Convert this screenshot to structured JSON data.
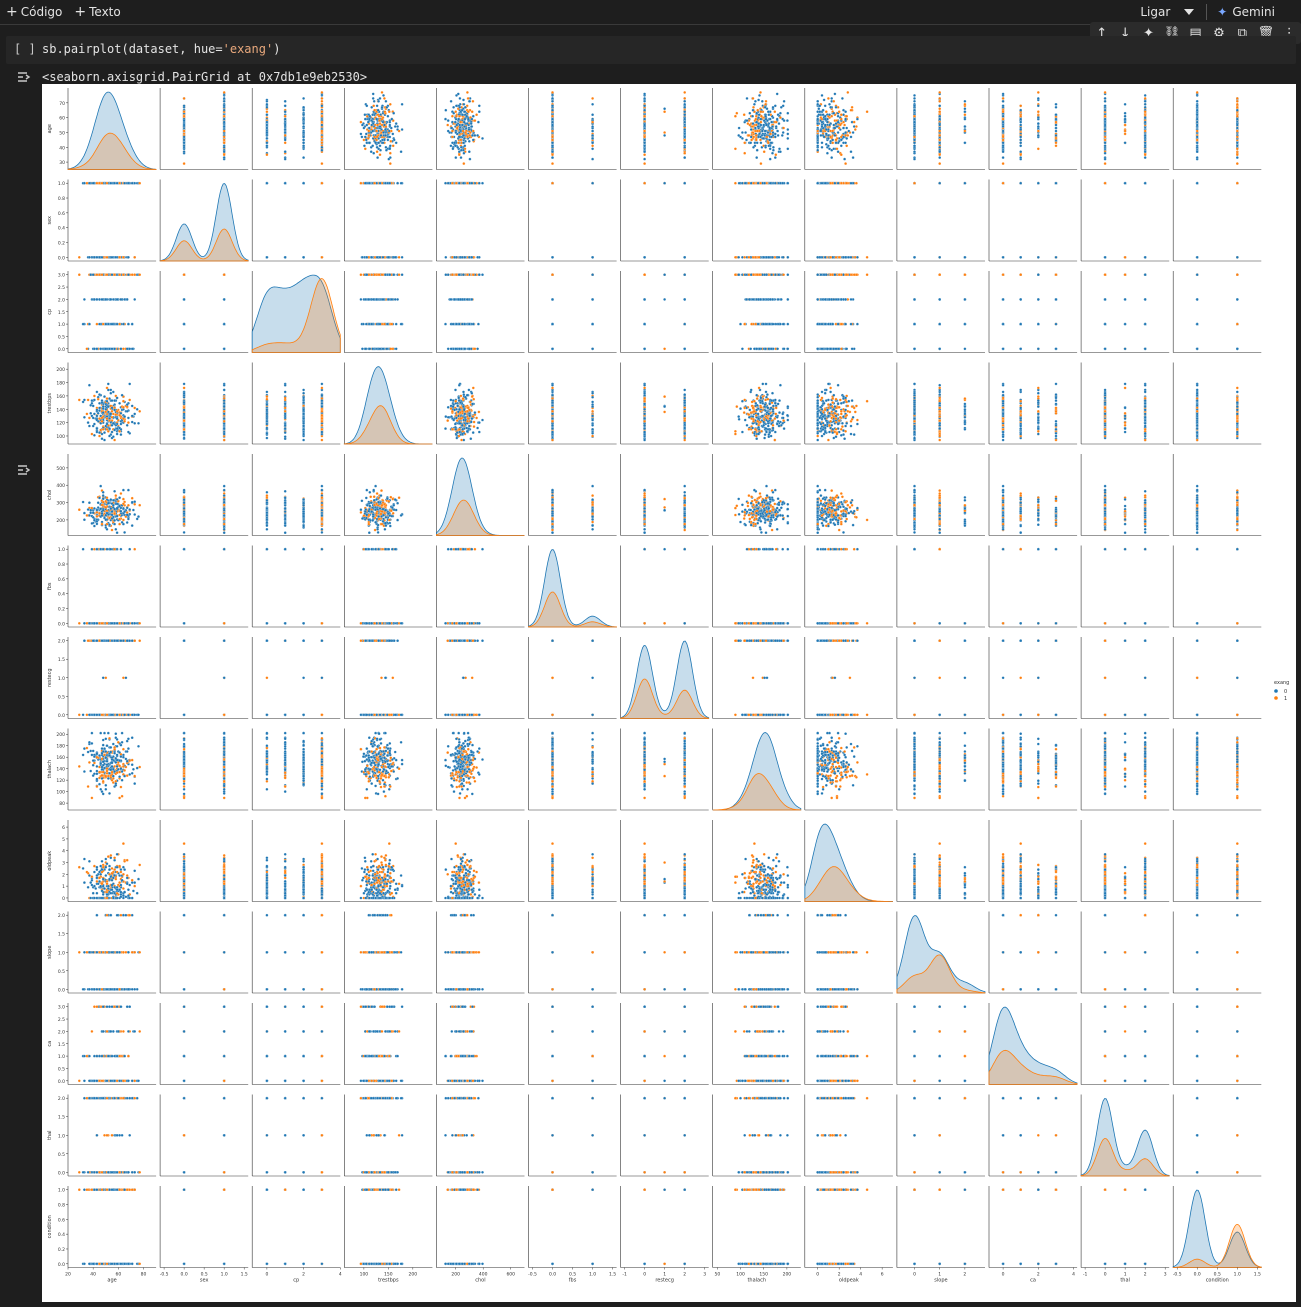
{
  "toolbar": {
    "code_label": "Código",
    "text_label": "Texto",
    "connect_label": "Ligar",
    "gemini_label": "Gemini"
  },
  "cell_toolbar_icons": [
    "arrow-up-icon",
    "arrow-down-icon",
    "sparkle-icon",
    "link-icon",
    "comment-icon",
    "settings-icon",
    "mirror-icon",
    "delete-icon",
    "more-icon"
  ],
  "cell": {
    "run_label": "[ ]",
    "code_prefix": "sb.pairplot(dataset, hue=",
    "code_string": "'exang'",
    "code_suffix": ")",
    "output_text": "<seaborn.axisgrid.PairGrid at 0x7db1e9eb2530>"
  },
  "colors": {
    "hue_0": "#1f77b4",
    "hue_1": "#ff7f0e",
    "background": "#1e1e1e"
  },
  "chart_data": {
    "type": "scatter",
    "variables": [
      "age",
      "sex",
      "cp",
      "trestbps",
      "chol",
      "fbs",
      "restecg",
      "thalach",
      "oldpeak",
      "slope",
      "ca",
      "thal",
      "condition"
    ],
    "hue": "exang",
    "legend": {
      "title": "exang",
      "labels": [
        "0",
        "1"
      ],
      "placement": "right"
    },
    "diagonal": "kde",
    "y_ticks": {
      "age": [
        "30",
        "40",
        "50",
        "60",
        "70"
      ],
      "sex": [
        "0.0",
        "0.2",
        "0.4",
        "0.6",
        "0.8",
        "1.0"
      ],
      "cp": [
        "0.0",
        "0.5",
        "1.0",
        "1.5",
        "2.0",
        "2.5",
        "3.0"
      ],
      "trestbps": [
        "100",
        "120",
        "140",
        "160",
        "180",
        "200"
      ],
      "chol": [
        "200",
        "300",
        "400",
        "500"
      ],
      "fbs": [
        "0.0",
        "0.2",
        "0.4",
        "0.6",
        "0.8",
        "1.0"
      ],
      "restecg": [
        "0.0",
        "0.5",
        "1.0",
        "1.5",
        "2.0"
      ],
      "thalach": [
        "80",
        "100",
        "120",
        "140",
        "160",
        "180",
        "200"
      ],
      "oldpeak": [
        "0",
        "1",
        "2",
        "3",
        "4",
        "5",
        "6"
      ],
      "slope": [
        "0.0",
        "0.5",
        "1.0",
        "1.5",
        "2.0"
      ],
      "ca": [
        "0.0",
        "0.5",
        "1.0",
        "1.5",
        "2.0",
        "2.5",
        "3.0"
      ],
      "thal": [
        "0.0",
        "0.5",
        "1.0",
        "1.5",
        "2.0"
      ],
      "condition": [
        "0.0",
        "0.2",
        "0.4",
        "0.6",
        "0.8",
        "1.0"
      ]
    },
    "x_ticks": {
      "age": [
        "20",
        "40",
        "60",
        "80"
      ],
      "sex": [
        "-0.5",
        "0.0",
        "0.5",
        "1.0",
        "1.5"
      ],
      "cp": [
        "0",
        "2",
        "4"
      ],
      "trestbps": [
        "100",
        "150",
        "200"
      ],
      "chol": [
        "200",
        "400",
        "600"
      ],
      "fbs": [
        "-0.5",
        "0.0",
        "0.5",
        "1.0",
        "1.5"
      ],
      "restecg": [
        "-1",
        "0",
        "1",
        "2",
        "3"
      ],
      "thalach": [
        "50",
        "100",
        "150",
        "200"
      ],
      "oldpeak": [
        "0",
        "2",
        "4",
        "6"
      ],
      "slope": [
        "0",
        "1",
        "2"
      ],
      "ca": [
        "0",
        "2",
        "4"
      ],
      "thal": [
        "-1",
        "0",
        "1",
        "2",
        "3"
      ],
      "condition": [
        "-0.5",
        "0.0",
        "0.5",
        "1.0",
        "1.5"
      ]
    },
    "ranges": {
      "age": [
        25,
        80
      ],
      "sex": [
        -0.05,
        1.05
      ],
      "cp": [
        -0.15,
        3.15
      ],
      "trestbps": [
        88,
        210
      ],
      "chol": [
        110,
        580
      ],
      "fbs": [
        -0.05,
        1.05
      ],
      "restecg": [
        -0.1,
        2.1
      ],
      "thalach": [
        68,
        210
      ],
      "oldpeak": [
        -0.3,
        6.6
      ],
      "slope": [
        -0.1,
        2.1
      ],
      "ca": [
        -0.15,
        3.15
      ],
      "thal": [
        -0.1,
        2.1
      ],
      "condition": [
        -0.05,
        1.05
      ]
    },
    "x_ranges": {
      "age": [
        20,
        90
      ],
      "sex": [
        -0.6,
        1.6
      ],
      "cp": [
        -0.8,
        4
      ],
      "trestbps": [
        60,
        240
      ],
      "chol": [
        60,
        700
      ],
      "fbs": [
        -0.6,
        1.6
      ],
      "restecg": [
        -1.2,
        3.2
      ],
      "thalach": [
        40,
        230
      ],
      "oldpeak": [
        -1.2,
        7
      ],
      "slope": [
        -0.7,
        2.8
      ],
      "ca": [
        -0.8,
        4.2
      ],
      "thal": [
        -1.2,
        3.2
      ],
      "condition": [
        -0.6,
        1.6
      ]
    },
    "discrete_values": {
      "sex": [
        0,
        1
      ],
      "cp": [
        0,
        1,
        2,
        3
      ],
      "fbs": [
        0,
        1
      ],
      "restecg": [
        0,
        1,
        2
      ],
      "slope": [
        0,
        1,
        2
      ],
      "ca": [
        0,
        1,
        2,
        3
      ],
      "thal": [
        0,
        1,
        2
      ],
      "condition": [
        0,
        1
      ]
    }
  }
}
